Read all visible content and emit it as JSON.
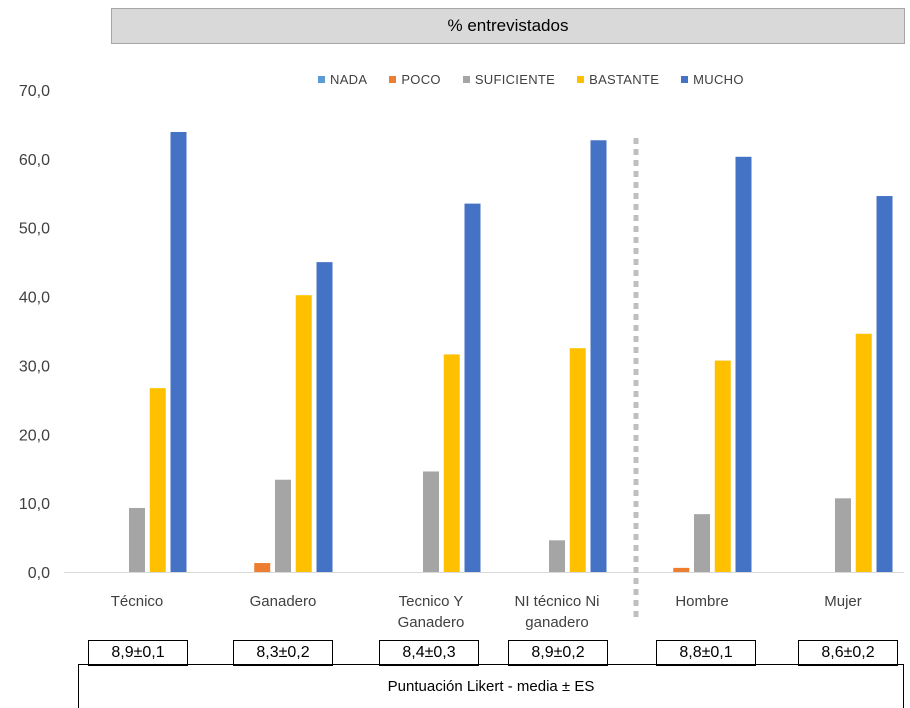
{
  "chart_data": {
    "type": "bar",
    "title": "% entrevistados",
    "ylim": [
      0,
      70
    ],
    "yticks": [
      "0,0",
      "10,0",
      "20,0",
      "30,0",
      "40,0",
      "50,0",
      "60,0",
      "70,0"
    ],
    "categories": [
      [
        "Técnico"
      ],
      [
        "Ganadero"
      ],
      [
        "Tecnico   Y",
        "Ganadero"
      ],
      [
        "NI técnico Ni",
        "ganadero"
      ],
      [
        "Hombre"
      ],
      [
        "Mujer"
      ]
    ],
    "series": [
      {
        "name": "NADA",
        "color": "#5b9bd5",
        "values": [
          0,
          0,
          0,
          0,
          0,
          0
        ]
      },
      {
        "name": "POCO",
        "color": "#ed7d31",
        "values": [
          0,
          1.3,
          0,
          0,
          0.6,
          0
        ]
      },
      {
        "name": "SUFICIENTE",
        "color": "#a5a5a5",
        "values": [
          9.3,
          13.4,
          14.6,
          4.6,
          8.4,
          10.7
        ]
      },
      {
        "name": "BASTANTE",
        "color": "#ffc000",
        "values": [
          26.7,
          40.2,
          31.6,
          32.5,
          30.7,
          34.6
        ]
      },
      {
        "name": "MUCHO",
        "color": "#4472c4",
        "values": [
          63.9,
          45.0,
          53.5,
          62.7,
          60.3,
          54.6
        ]
      }
    ],
    "legend_position": "top-right",
    "grid": false,
    "separator": "dotted line between 'NI técnico Ni ganadero' and 'Hombre'"
  },
  "scores": [
    "8,9±0,1",
    "8,3±0,2",
    "8,4±0,3",
    "8,9±0,2",
    "8,8±0,1",
    "8,6±0,2"
  ],
  "footer_label": "Puntuación Likert - media ± ES"
}
